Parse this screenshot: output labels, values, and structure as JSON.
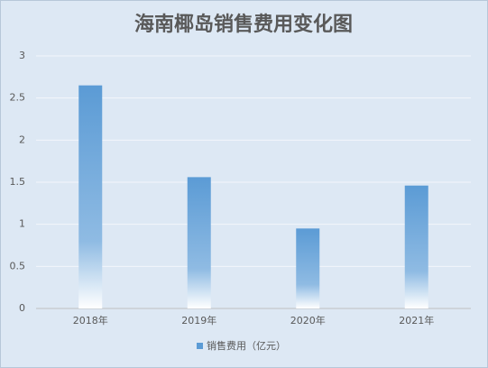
{
  "chart_data": {
    "type": "bar",
    "title": "海南椰岛销售费用变化图",
    "categories": [
      "2018年",
      "2019年",
      "2020年",
      "2021年"
    ],
    "series": [
      {
        "name": "销售费用（亿元）",
        "color": "#5b9bd5",
        "values": [
          2.65,
          1.56,
          0.95,
          1.46
        ]
      }
    ],
    "ylim": [
      0,
      3
    ],
    "yticks": [
      0,
      0.5,
      1,
      1.5,
      2,
      2.5,
      3
    ],
    "grid": true,
    "legend": "bottom"
  }
}
